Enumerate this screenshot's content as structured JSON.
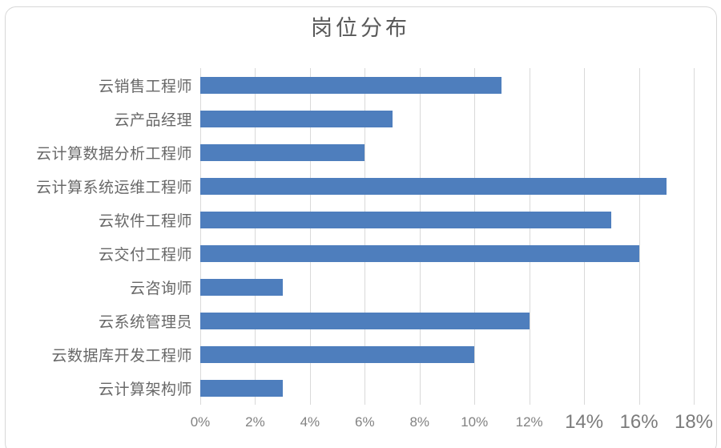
{
  "title": "岗位分布",
  "colors": {
    "bar": "#4e7ebd",
    "gridline": "#d9d9d9",
    "frame_border": "#d7d7d7",
    "title_text": "#595959",
    "category_text": "#686868",
    "tick_text": "#828282",
    "background": "#ffffff"
  },
  "chart_data": {
    "type": "bar",
    "orientation": "horizontal",
    "title": "岗位分布",
    "categories": [
      "云销售工程师",
      "云产品经理",
      "云计算数据分析工程师",
      "云计算系统运维工程师",
      "云软件工程师",
      "云交付工程师",
      "云咨询师",
      "云系统管理员",
      "云数据库开发工程师",
      "云计算架构师"
    ],
    "values": [
      11,
      7,
      6,
      17,
      15,
      16,
      3,
      12,
      10,
      3
    ],
    "unit": "%",
    "xlabel": "",
    "ylabel": "",
    "xlim": [
      0,
      18
    ],
    "x_ticks": [
      "0%",
      "2%",
      "4%",
      "6%",
      "8%",
      "10%",
      "12%",
      "14%",
      "16%",
      "18%"
    ],
    "x_tick_values": [
      0,
      2,
      4,
      6,
      8,
      10,
      12,
      14,
      16,
      18
    ],
    "emphasized_ticks": [
      "14%",
      "16%",
      "18%"
    ],
    "grid": "vertical",
    "legend": "none"
  }
}
